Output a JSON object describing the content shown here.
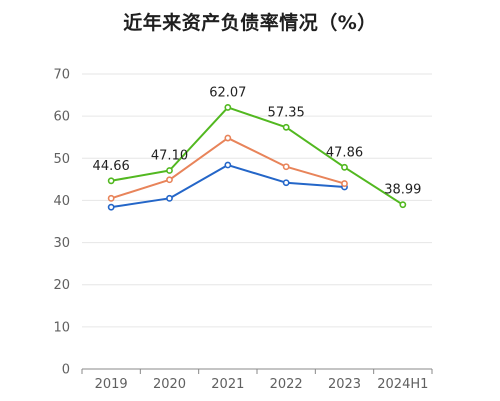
{
  "chart_data": {
    "type": "line",
    "title": "近年来资产负债率情况（%）",
    "categories": [
      "2019",
      "2020",
      "2021",
      "2022",
      "2023",
      "2024H1"
    ],
    "ylim": [
      0,
      70
    ],
    "yticks": [
      0,
      10,
      20,
      30,
      40,
      50,
      60,
      70
    ],
    "grid": true,
    "legend": "none",
    "series": [
      {
        "color": "#52B820",
        "values": [
          44.66,
          47.1,
          62.07,
          57.35,
          47.86,
          38.99
        ],
        "labels": [
          "44.66",
          "47.10",
          "62.07",
          "57.35",
          "47.86",
          "38.99"
        ]
      },
      {
        "color": "#E8845A",
        "values": [
          40.5,
          44.9,
          54.8,
          48.0,
          44.0,
          null
        ]
      },
      {
        "color": "#2466C8",
        "values": [
          38.4,
          40.5,
          48.4,
          44.2,
          43.2,
          null
        ]
      }
    ]
  }
}
